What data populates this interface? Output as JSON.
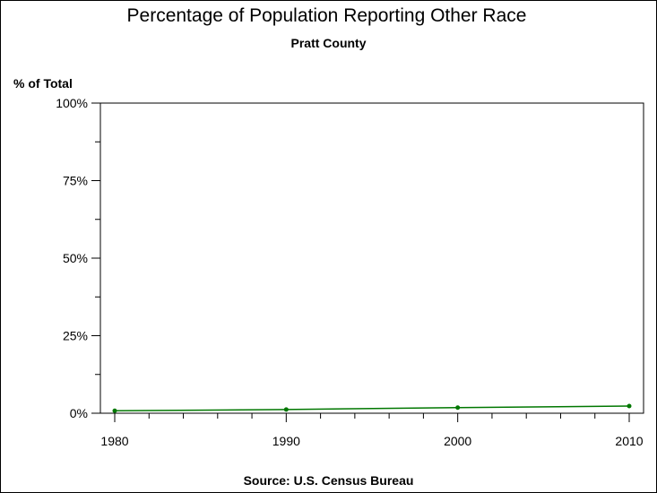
{
  "chart_data": {
    "type": "line",
    "title": "Percentage of Population Reporting Other Race",
    "subtitle": "Pratt County",
    "ylabel": "% of Total",
    "xlabel": "",
    "source": "Source: U.S. Census Bureau",
    "x": [
      1980,
      1990,
      2000,
      2010
    ],
    "x_tick_labels": [
      "1980",
      "1990",
      "2000",
      "2010"
    ],
    "xlim": [
      1980,
      2010
    ],
    "ylim": [
      0,
      100
    ],
    "y_ticks": [
      0,
      25,
      50,
      75,
      100
    ],
    "y_tick_labels": [
      "0%",
      "25%",
      "50%",
      "75%",
      "100%"
    ],
    "grid": false,
    "series": [
      {
        "values": [
          0.8,
          1.2,
          1.8,
          2.3
        ],
        "color": "#007700"
      }
    ]
  }
}
